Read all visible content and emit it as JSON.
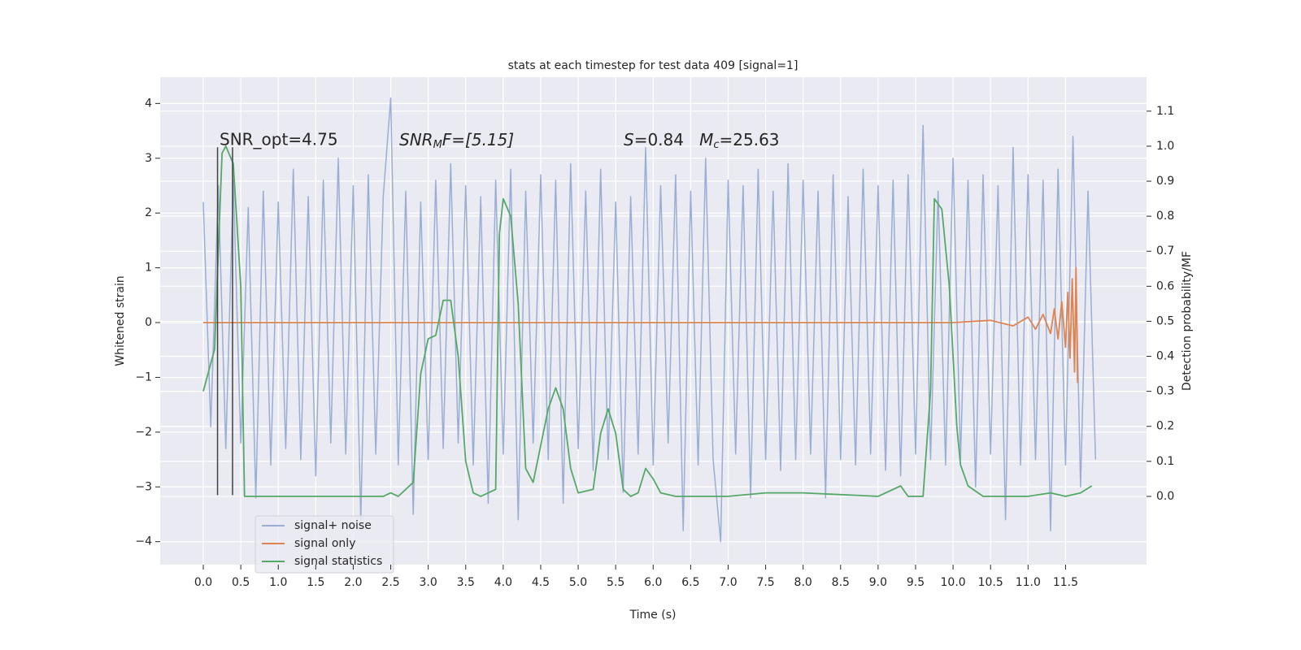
{
  "chart_data": {
    "type": "line",
    "title": "stats at each timestep for test data 409 [signal=1]",
    "x_label": "Time (s)",
    "y_label": "Whitened strain",
    "y2_label": "Detection probability/MF",
    "grid": true,
    "legend": "lower left",
    "xlim": [
      -0.575,
      12.58
    ],
    "ylim": [
      -4.42,
      4.48
    ],
    "y2lim": [
      -0.195,
      1.197
    ],
    "xticks": [
      {
        "value": 0,
        "label": "0.0"
      },
      {
        "value": 0.5,
        "label": "0.5"
      },
      {
        "value": 1,
        "label": "1.0"
      },
      {
        "value": 1.5,
        "label": "1.5"
      },
      {
        "value": 2,
        "label": "2.0"
      },
      {
        "value": 2.5,
        "label": "2.5"
      },
      {
        "value": 3,
        "label": "3.0"
      },
      {
        "value": 3.5,
        "label": "3.5"
      },
      {
        "value": 4,
        "label": "4.0"
      },
      {
        "value": 4.5,
        "label": "4.5"
      },
      {
        "value": 5,
        "label": "5.0"
      },
      {
        "value": 5.5,
        "label": "5.5"
      },
      {
        "value": 6,
        "label": "6.0"
      },
      {
        "value": 6.5,
        "label": "6.5"
      },
      {
        "value": 7,
        "label": "7.0"
      },
      {
        "value": 7.5,
        "label": "7.5"
      },
      {
        "value": 8,
        "label": "8.0"
      },
      {
        "value": 8.5,
        "label": "8.5"
      },
      {
        "value": 9,
        "label": "9.0"
      },
      {
        "value": 9.5,
        "label": "9.5"
      },
      {
        "value": 10,
        "label": "10.0"
      },
      {
        "value": 10.5,
        "label": "10.5"
      },
      {
        "value": 11,
        "label": "11.0"
      },
      {
        "value": 11.5,
        "label": "11.5"
      }
    ],
    "yticks": [
      {
        "value": -4,
        "label": "−4"
      },
      {
        "value": -3,
        "label": "−3"
      },
      {
        "value": -2,
        "label": "−2"
      },
      {
        "value": -1,
        "label": "−1"
      },
      0,
      1,
      2,
      3,
      4
    ],
    "y2ticks": [
      {
        "value": 0,
        "label": "0.0"
      },
      {
        "value": 0.1,
        "label": "0.1"
      },
      {
        "value": 0.2,
        "label": "0.2"
      },
      {
        "value": 0.3,
        "label": "0.3"
      },
      {
        "value": 0.4,
        "label": "0.4"
      },
      {
        "value": 0.5,
        "label": "0.5"
      },
      {
        "value": 0.6,
        "label": "0.6"
      },
      {
        "value": 0.7,
        "label": "0.7"
      },
      {
        "value": 0.8,
        "label": "0.8"
      },
      {
        "value": 0.9,
        "label": "0.9"
      },
      {
        "value": 1,
        "label": "1.0"
      },
      {
        "value": 1.1,
        "label": "1.1"
      }
    ],
    "annotations": [
      [
        "SNR_opt=4.75"
      ],
      [
        "SNR",
        "M",
        "F=[5.15]"
      ],
      [
        "S",
        "=0.84   ",
        "M",
        "c",
        "=25.63"
      ]
    ],
    "vlines_x": [
      0.19,
      0.39
    ],
    "vlines_y": [
      -3.15,
      3.2
    ],
    "vline_color": "#404040",
    "series": [
      {
        "name": "signal+ noise",
        "color": "#9aaed3",
        "axis": "y",
        "x": [
          0,
          0.1,
          0.2,
          0.3,
          0.4,
          0.5,
          0.6,
          0.7,
          0.8,
          0.9,
          1,
          1.1,
          1.2,
          1.3,
          1.4,
          1.5,
          1.6,
          1.7,
          1.8,
          1.9,
          2,
          2.1,
          2.2,
          2.3,
          2.4,
          2.5,
          2.6,
          2.7,
          2.8,
          2.9,
          3,
          3.1,
          3.2,
          3.3,
          3.4,
          3.5,
          3.6,
          3.7,
          3.8,
          3.9,
          4,
          4.1,
          4.2,
          4.3,
          4.4,
          4.5,
          4.6,
          4.7,
          4.8,
          4.9,
          5,
          5.1,
          5.2,
          5.3,
          5.4,
          5.5,
          5.6,
          5.7,
          5.8,
          5.9,
          6,
          6.1,
          6.2,
          6.3,
          6.4,
          6.5,
          6.6,
          6.7,
          6.8,
          6.9,
          7,
          7.1,
          7.2,
          7.3,
          7.4,
          7.5,
          7.6,
          7.7,
          7.8,
          7.9,
          8,
          8.1,
          8.2,
          8.3,
          8.4,
          8.5,
          8.6,
          8.7,
          8.8,
          8.9,
          9,
          9.1,
          9.2,
          9.3,
          9.4,
          9.5,
          9.6,
          9.7,
          9.8,
          9.9,
          10,
          10.1,
          10.2,
          10.3,
          10.4,
          10.5,
          10.6,
          10.7,
          10.8,
          10.9,
          11,
          11.1,
          11.2,
          11.3,
          11.4,
          11.5,
          11.6,
          11.7,
          11.8,
          11.9
        ],
        "values": [
          2.2,
          -1.9,
          2.5,
          -2.3,
          2.6,
          -2.2,
          2.1,
          -3.2,
          2.4,
          -2.6,
          2.2,
          -2.3,
          2.8,
          -2.5,
          2.3,
          -2.8,
          2.6,
          -2.2,
          3.0,
          -2.4,
          2.5,
          -3.6,
          2.7,
          -2.4,
          2.3,
          4.1,
          -2.6,
          2.4,
          -3.5,
          2.2,
          -2.5,
          2.6,
          -2.3,
          2.9,
          -2.2,
          2.5,
          -2.6,
          2.3,
          -3.3,
          2.6,
          -2.4,
          2.8,
          -3.6,
          2.4,
          -2.2,
          2.7,
          -2.5,
          2.6,
          -3.3,
          2.9,
          -2.3,
          2.4,
          -2.7,
          2.8,
          -2.5,
          2.2,
          -3.1,
          2.3,
          -2.4,
          3.2,
          -2.6,
          2.5,
          -2.2,
          2.7,
          -3.8,
          2.4,
          -2.6,
          3.0,
          -2.5,
          -4.0,
          2.6,
          -2.4,
          2.5,
          -3.2,
          2.8,
          -2.5,
          2.4,
          -2.7,
          2.9,
          -2.5,
          2.6,
          -2.4,
          2.4,
          -3.2,
          2.7,
          -2.5,
          2.3,
          -2.6,
          2.8,
          -2.4,
          2.5,
          -2.7,
          2.6,
          -2.8,
          2.7,
          -2.4,
          3.6,
          -2.5,
          2.4,
          -2.6,
          3.0,
          -2.5,
          2.6,
          -3.0,
          2.7,
          -2.4,
          2.5,
          -3.6,
          3.2,
          -2.6,
          2.7,
          -2.5,
          2.6,
          -3.8,
          2.8,
          -2.6,
          3.4,
          -3.0,
          2.4,
          -2.5
        ]
      },
      {
        "name": "signal only",
        "color": "#dd8452",
        "axis": "y",
        "x": [
          0,
          10.0,
          10.5,
          10.8,
          11.0,
          11.1,
          11.2,
          11.3,
          11.35,
          11.4,
          11.45,
          11.5,
          11.53,
          11.56,
          11.59,
          11.62,
          11.64,
          11.66
        ],
        "values": [
          0,
          0,
          0.04,
          -0.06,
          0.1,
          -0.12,
          0.15,
          -0.2,
          0.25,
          -0.3,
          0.38,
          -0.45,
          0.55,
          -0.65,
          0.8,
          -0.9,
          1.0,
          -1.1
        ]
      },
      {
        "name": "signal statistics",
        "color": "#55a868",
        "axis": "y2",
        "x": [
          0,
          0.15,
          0.25,
          0.3,
          0.4,
          0.5,
          0.55,
          0.7,
          1,
          2.4,
          2.5,
          2.6,
          2.8,
          2.9,
          3,
          3.1,
          3.2,
          3.3,
          3.4,
          3.5,
          3.6,
          3.7,
          3.9,
          3.95,
          4,
          4.1,
          4.2,
          4.3,
          4.4,
          4.6,
          4.7,
          4.8,
          4.9,
          5,
          5.2,
          5.3,
          5.4,
          5.5,
          5.6,
          5.7,
          5.8,
          5.9,
          6,
          6.1,
          6.3,
          7,
          7.5,
          8,
          9,
          9.3,
          9.4,
          9.6,
          9.7,
          9.75,
          9.85,
          9.95,
          10.05,
          10.1,
          10.2,
          10.4,
          11,
          11.3,
          11.5,
          11.7,
          11.85
        ],
        "values": [
          0.3,
          0.42,
          0.98,
          1.0,
          0.95,
          0.6,
          0.0,
          0.0,
          0.0,
          0.0,
          0.01,
          0.0,
          0.04,
          0.35,
          0.45,
          0.46,
          0.56,
          0.56,
          0.4,
          0.1,
          0.01,
          0.0,
          0.02,
          0.75,
          0.85,
          0.8,
          0.55,
          0.08,
          0.04,
          0.25,
          0.31,
          0.25,
          0.08,
          0.01,
          0.02,
          0.18,
          0.25,
          0.18,
          0.02,
          0.0,
          0.01,
          0.08,
          0.05,
          0.01,
          0.0,
          0.0,
          0.01,
          0.01,
          0.0,
          0.03,
          0.0,
          0.0,
          0.3,
          0.85,
          0.82,
          0.6,
          0.2,
          0.09,
          0.03,
          0.0,
          0.0,
          0.01,
          0.0,
          0.01,
          0.03
        ]
      }
    ]
  }
}
